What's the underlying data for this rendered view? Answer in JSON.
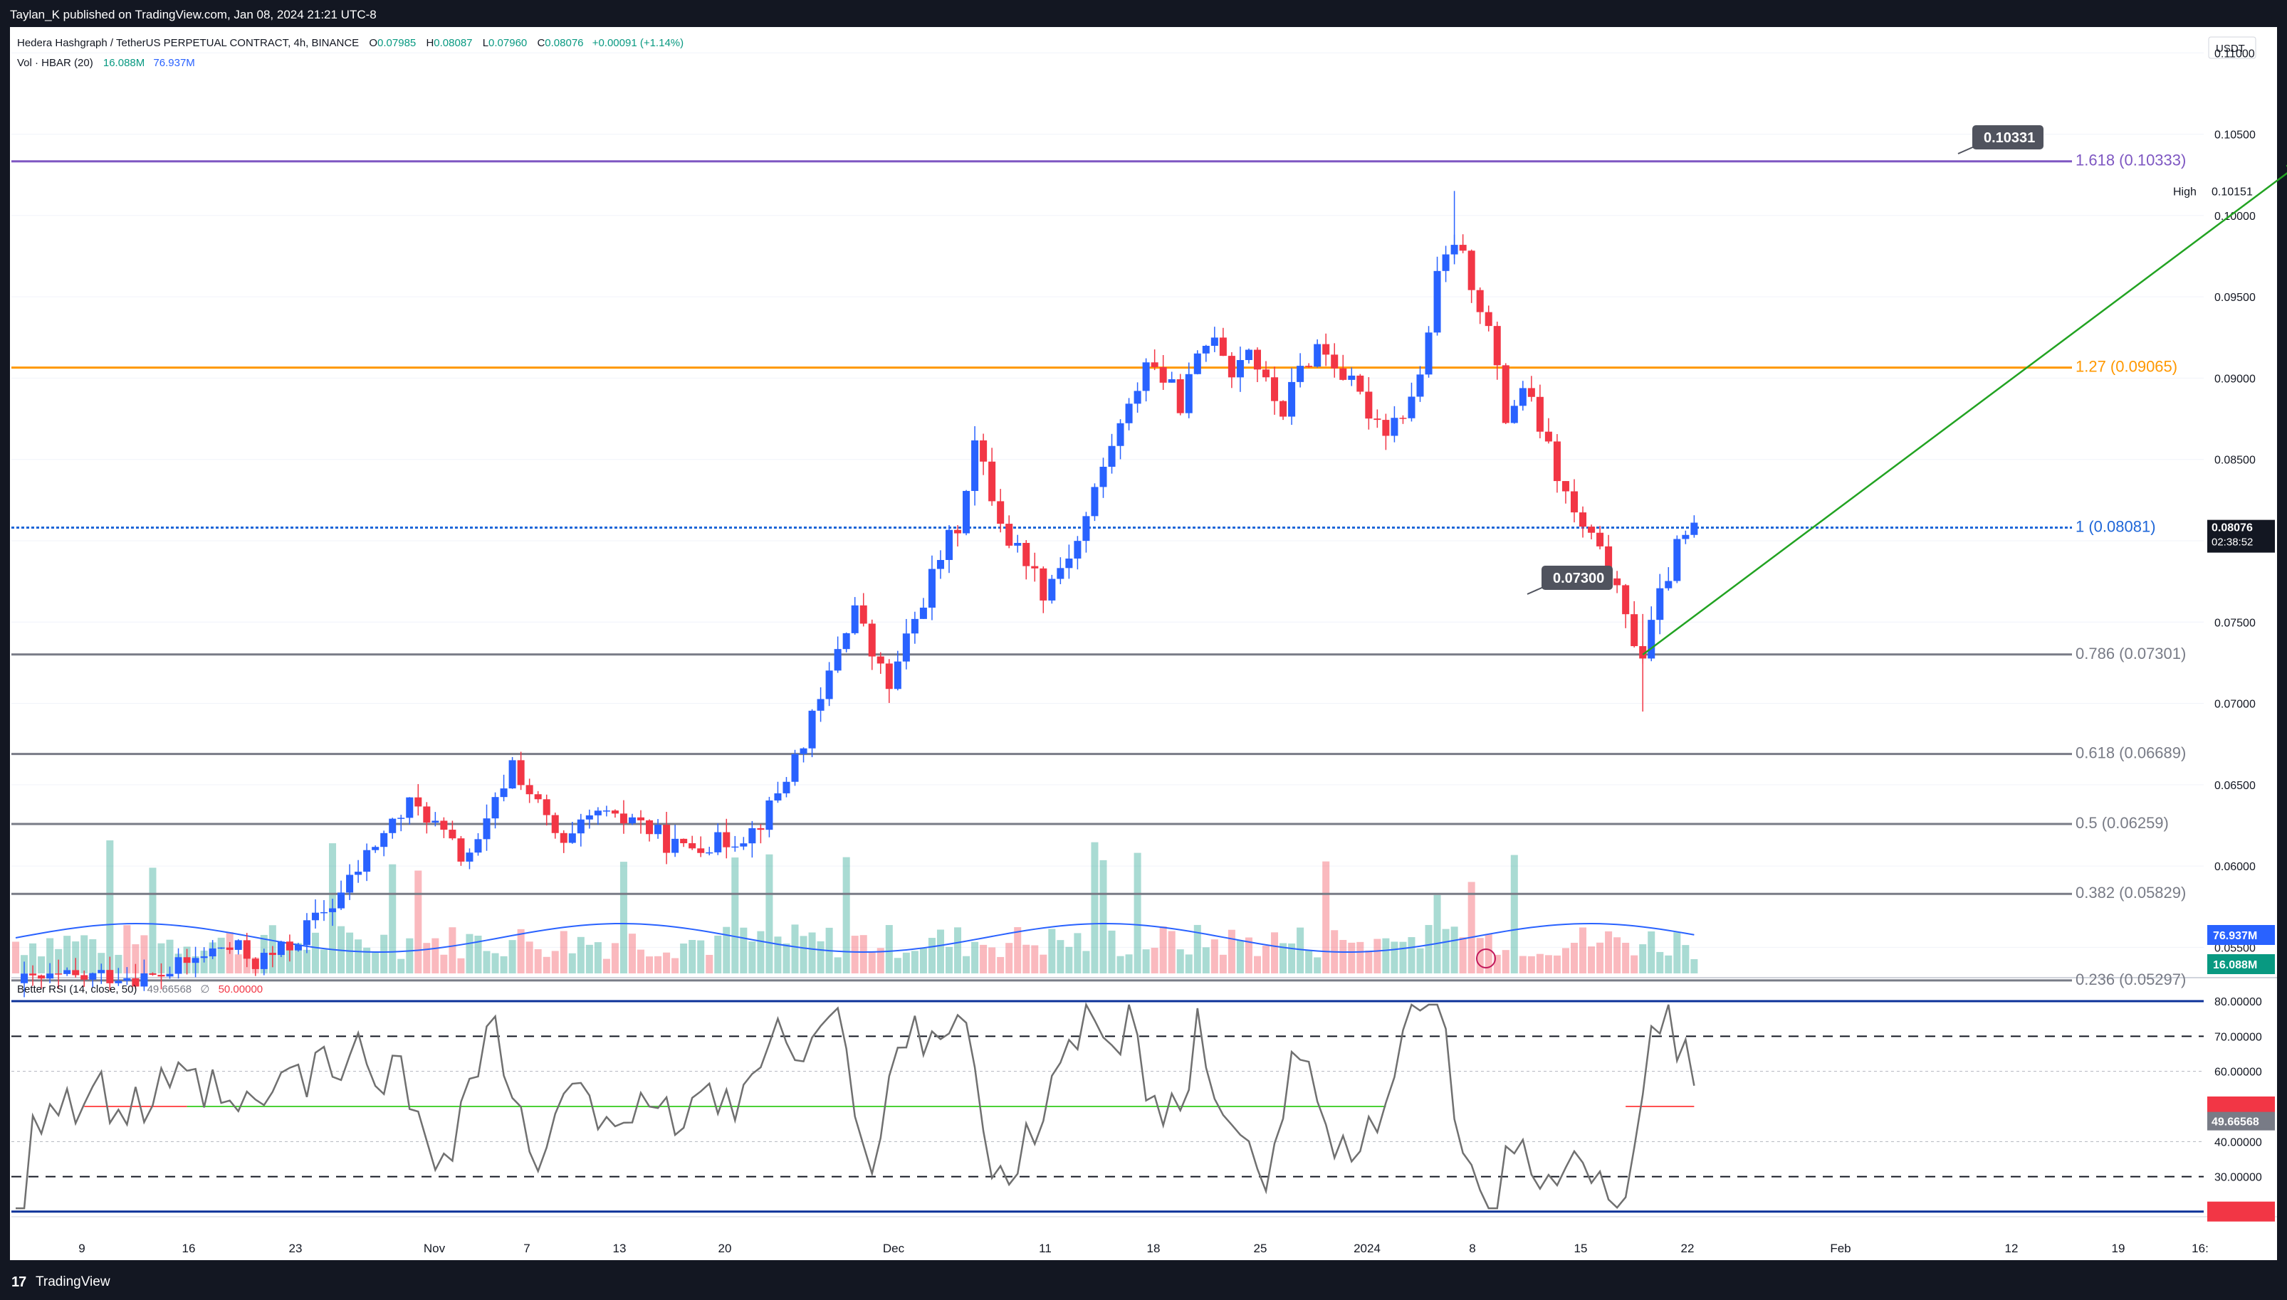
{
  "publisher_line": "Taylan_K published on TradingView.com, Jan 08, 2024 21:21 UTC-8",
  "footer_brand": "TradingView",
  "legend": {
    "symbol": "Hedera Hashgraph / TetherUS PERPETUAL CONTRACT, 4h, BINANCE",
    "o_label": "O",
    "o": "0.07985",
    "h_label": "H",
    "h": "0.08087",
    "l_label": "L",
    "l": "0.07960",
    "c_label": "C",
    "c": "0.08076",
    "change": "+0.00091 (+1.14%)",
    "vol_label": "Vol · HBAR (20)",
    "vol1": "16.088M",
    "vol2": "76.937M",
    "rsi_label": "Better RSI (14, close, 50)",
    "rsi_val": "49.66568",
    "rsi_sep": "∅",
    "rsi_mid": "50.00000"
  },
  "currency": "USDT",
  "colors": {
    "up": "#2962ff",
    "down": "#f23645",
    "fib_1618": "#7e57c2",
    "fib_127": "#ff9800",
    "fib_1": "#1e66d8",
    "fib_grey": "#787b86",
    "arrow": "#22a322",
    "rsi_line": "#707070",
    "rsi_green": "#4cd137",
    "rsi_red": "#ff5252",
    "rsi_band": "#0c3299",
    "vol_ma": "#2962ff"
  },
  "chart_data": [
    {
      "type": "candlestick",
      "price_axis": [
        "0.11000",
        "0.10500",
        "0.10000",
        "0.09500",
        "0.09000",
        "0.08500",
        "0.08000",
        "0.07500",
        "0.07000",
        "0.06500",
        "0.06000",
        "0.05500"
      ],
      "ylim": [
        0.0534,
        0.1115
      ],
      "x_ticks": [
        "9",
        "16",
        "23",
        "Nov",
        "7",
        "13",
        "20",
        "Dec",
        "11",
        "18",
        "25",
        "2024",
        "8",
        "15",
        "22",
        "Feb",
        "12",
        "19",
        "16:"
      ],
      "high_label": "High",
      "high_value": "0.10151",
      "last_price": "0.08076",
      "countdown": "02:38:52",
      "fib_levels": [
        {
          "label": "1.618 (0.10333)",
          "value": 0.10333,
          "color": "#7e57c2"
        },
        {
          "label": "1.27 (0.09065)",
          "value": 0.09065,
          "color": "#ff9800"
        },
        {
          "label": "1 (0.08081)",
          "value": 0.08081,
          "color": "#1e66d8"
        },
        {
          "label": "0.786 (0.07301)",
          "value": 0.07301,
          "color": "#787b86"
        },
        {
          "label": "0.618 (0.06689)",
          "value": 0.06689,
          "color": "#787b86"
        },
        {
          "label": "0.5 (0.06259)",
          "value": 0.06259,
          "color": "#787b86"
        },
        {
          "label": "0.382 (0.05829)",
          "value": 0.05829,
          "color": "#787b86"
        },
        {
          "label": "0.236 (0.05297)",
          "value": 0.05297,
          "color": "#787b86"
        }
      ],
      "callouts": [
        "0.10331",
        "0.07300"
      ],
      "price_path": [
        [
          0,
          0.0528
        ],
        [
          4,
          0.053
        ],
        [
          8,
          0.0531
        ],
        [
          12,
          0.0534
        ],
        [
          16,
          0.0531
        ],
        [
          20,
          0.054
        ],
        [
          24,
          0.055
        ],
        [
          26,
          0.0548
        ],
        [
          28,
          0.0541
        ],
        [
          30,
          0.0545
        ],
        [
          32,
          0.0551
        ],
        [
          34,
          0.0562
        ],
        [
          36,
          0.0572
        ],
        [
          38,
          0.0583
        ],
        [
          40,
          0.0598
        ],
        [
          42,
          0.0614
        ],
        [
          44,
          0.0626
        ],
        [
          46,
          0.0637
        ],
        [
          48,
          0.0632
        ],
        [
          50,
          0.0618
        ],
        [
          52,
          0.0606
        ],
        [
          54,
          0.0612
        ],
        [
          56,
          0.0638
        ],
        [
          58,
          0.0664
        ],
        [
          60,
          0.0645
        ],
        [
          62,
          0.0628
        ],
        [
          64,
          0.061
        ],
        [
          66,
          0.0622
        ],
        [
          68,
          0.0633
        ],
        [
          70,
          0.0626
        ],
        [
          72,
          0.0631
        ],
        [
          74,
          0.0622
        ],
        [
          76,
          0.0615
        ],
        [
          78,
          0.061
        ],
        [
          80,
          0.0615
        ],
        [
          82,
          0.0614
        ],
        [
          84,
          0.0618
        ],
        [
          86,
          0.0622
        ],
        [
          88,
          0.0635
        ],
        [
          90,
          0.0655
        ],
        [
          92,
          0.0678
        ],
        [
          94,
          0.07
        ],
        [
          96,
          0.0735
        ],
        [
          98,
          0.076
        ],
        [
          100,
          0.073
        ],
        [
          102,
          0.071
        ],
        [
          104,
          0.0738
        ],
        [
          106,
          0.0765
        ],
        [
          108,
          0.079
        ],
        [
          110,
          0.081
        ],
        [
          112,
          0.086
        ],
        [
          114,
          0.0828
        ],
        [
          116,
          0.08
        ],
        [
          118,
          0.079
        ],
        [
          120,
          0.077
        ],
        [
          122,
          0.0785
        ],
        [
          124,
          0.08
        ],
        [
          126,
          0.083
        ],
        [
          128,
          0.086
        ],
        [
          130,
          0.088
        ],
        [
          132,
          0.0912
        ],
        [
          134,
          0.09
        ],
        [
          136,
          0.0885
        ],
        [
          138,
          0.091
        ],
        [
          140,
          0.093
        ],
        [
          142,
          0.0905
        ],
        [
          144,
          0.092
        ],
        [
          146,
          0.0895
        ],
        [
          148,
          0.088
        ],
        [
          150,
          0.0905
        ],
        [
          152,
          0.092
        ],
        [
          154,
          0.091
        ],
        [
          156,
          0.0895
        ],
        [
          158,
          0.088
        ],
        [
          160,
          0.087
        ],
        [
          162,
          0.088
        ],
        [
          164,
          0.09
        ],
        [
          166,
          0.096
        ],
        [
          168,
          0.0985
        ],
        [
          170,
          0.096
        ],
        [
          172,
          0.093
        ],
        [
          174,
          0.0875
        ],
        [
          176,
          0.0895
        ],
        [
          178,
          0.087
        ],
        [
          180,
          0.084
        ],
        [
          182,
          0.0815
        ],
        [
          184,
          0.08
        ],
        [
          186,
          0.0782
        ],
        [
          188,
          0.075
        ],
        [
          190,
          0.073
        ],
        [
          192,
          0.0765
        ],
        [
          194,
          0.0795
        ],
        [
          196,
          0.0808
        ]
      ],
      "projection": {
        "from": [
          190,
          0.073
        ],
        "to": [
          256,
          0.10331
        ]
      },
      "rsi_axis": [
        "80.00000",
        "70.00000",
        "60.00000",
        "50.00000",
        "40.00000",
        "30.00000",
        "20.06534"
      ],
      "rsi_current": "49.66568",
      "rsi_low": "20.06534",
      "volume_ma_label": "76.937M",
      "volume_label": "16.088M"
    }
  ]
}
